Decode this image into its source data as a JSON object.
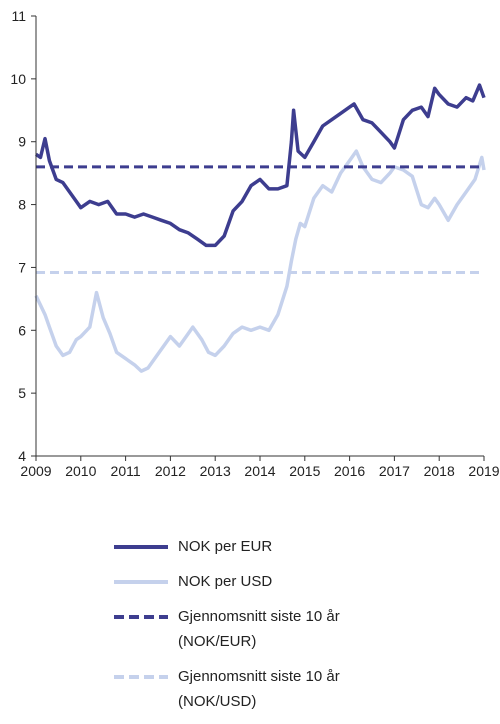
{
  "chart_data": {
    "type": "line",
    "title": "",
    "xlabel": "",
    "ylabel": "",
    "xlim": [
      2009,
      2019
    ],
    "ylim": [
      4,
      11
    ],
    "x_ticks": [
      "2009",
      "2010",
      "2011",
      "2012",
      "2013",
      "2014",
      "2015",
      "2016",
      "2017",
      "2018",
      "2019"
    ],
    "y_ticks": [
      "4",
      "5",
      "6",
      "7",
      "8",
      "9",
      "10",
      "11"
    ],
    "grid": false,
    "legend_position": "bottom",
    "series": [
      {
        "name": "NOK per EUR",
        "style": "solid",
        "color": "#3d3d8f",
        "x": [
          2009.0,
          2009.1,
          2009.2,
          2009.3,
          2009.45,
          2009.6,
          2009.75,
          2009.9,
          2010.0,
          2010.2,
          2010.4,
          2010.6,
          2010.8,
          2011.0,
          2011.2,
          2011.4,
          2011.6,
          2011.8,
          2012.0,
          2012.2,
          2012.4,
          2012.6,
          2012.8,
          2013.0,
          2013.2,
          2013.4,
          2013.6,
          2013.8,
          2014.0,
          2014.2,
          2014.4,
          2014.6,
          2014.7,
          2014.75,
          2014.85,
          2015.0,
          2015.2,
          2015.4,
          2015.6,
          2015.8,
          2016.0,
          2016.1,
          2016.3,
          2016.5,
          2016.7,
          2016.9,
          2017.0,
          2017.2,
          2017.4,
          2017.6,
          2017.75,
          2017.9,
          2018.0,
          2018.2,
          2018.4,
          2018.6,
          2018.75,
          2018.9,
          2019.0
        ],
        "values": [
          8.8,
          8.75,
          9.05,
          8.7,
          8.4,
          8.35,
          8.2,
          8.05,
          7.95,
          8.05,
          8.0,
          8.05,
          7.85,
          7.85,
          7.8,
          7.85,
          7.8,
          7.75,
          7.7,
          7.6,
          7.55,
          7.45,
          7.35,
          7.35,
          7.5,
          7.9,
          8.05,
          8.3,
          8.4,
          8.25,
          8.25,
          8.3,
          9.0,
          9.5,
          8.85,
          8.75,
          9.0,
          9.25,
          9.35,
          9.45,
          9.55,
          9.6,
          9.35,
          9.3,
          9.15,
          9.0,
          8.9,
          9.35,
          9.5,
          9.55,
          9.4,
          9.85,
          9.75,
          9.6,
          9.55,
          9.7,
          9.65,
          9.9,
          9.7
        ]
      },
      {
        "name": "NOK per USD",
        "style": "solid",
        "color": "#c5d1ec",
        "x": [
          2009.0,
          2009.1,
          2009.2,
          2009.3,
          2009.45,
          2009.6,
          2009.75,
          2009.9,
          2010.0,
          2010.2,
          2010.35,
          2010.5,
          2010.65,
          2010.8,
          2011.0,
          2011.2,
          2011.35,
          2011.5,
          2011.7,
          2011.85,
          2012.0,
          2012.2,
          2012.35,
          2012.5,
          2012.7,
          2012.85,
          2013.0,
          2013.2,
          2013.4,
          2013.6,
          2013.8,
          2014.0,
          2014.2,
          2014.4,
          2014.6,
          2014.7,
          2014.8,
          2014.9,
          2015.0,
          2015.2,
          2015.4,
          2015.6,
          2015.8,
          2016.0,
          2016.15,
          2016.3,
          2016.5,
          2016.7,
          2016.9,
          2017.0,
          2017.2,
          2017.4,
          2017.6,
          2017.75,
          2017.9,
          2018.0,
          2018.2,
          2018.4,
          2018.6,
          2018.8,
          2018.95,
          2019.0
        ],
        "values": [
          6.55,
          6.4,
          6.25,
          6.05,
          5.75,
          5.6,
          5.65,
          5.85,
          5.9,
          6.05,
          6.6,
          6.2,
          5.95,
          5.65,
          5.55,
          5.45,
          5.35,
          5.4,
          5.6,
          5.75,
          5.9,
          5.75,
          5.9,
          6.05,
          5.85,
          5.65,
          5.6,
          5.75,
          5.95,
          6.05,
          6.0,
          6.05,
          6.0,
          6.25,
          6.7,
          7.1,
          7.45,
          7.7,
          7.65,
          8.1,
          8.3,
          8.2,
          8.5,
          8.7,
          8.85,
          8.6,
          8.4,
          8.35,
          8.5,
          8.6,
          8.55,
          8.45,
          8.0,
          7.95,
          8.1,
          8.0,
          7.75,
          8.0,
          8.2,
          8.4,
          8.75,
          8.55
        ]
      },
      {
        "name": "Gjennomsnitt siste 10 år (NOK/EUR)",
        "style": "dashed",
        "color": "#3d3d8f",
        "x": [
          2009.0,
          2019.0
        ],
        "values": [
          8.6,
          8.6
        ]
      },
      {
        "name": "Gjennomsnitt siste 10 år (NOK/USD)",
        "style": "dashed",
        "color": "#c5d1ec",
        "x": [
          2009.0,
          2019.0
        ],
        "values": [
          6.92,
          6.92
        ]
      }
    ]
  },
  "legend": {
    "items": [
      {
        "label_lines": [
          "NOK per EUR"
        ],
        "style": "solid",
        "color": "#3d3d8f"
      },
      {
        "label_lines": [
          "NOK per USD"
        ],
        "style": "solid",
        "color": "#c5d1ec"
      },
      {
        "label_lines": [
          "Gjennomsnitt siste 10 år",
          "(NOK/EUR)"
        ],
        "style": "dashed",
        "color": "#3d3d8f"
      },
      {
        "label_lines": [
          "Gjennomsnitt siste 10 år",
          "(NOK/USD)"
        ],
        "style": "dashed",
        "color": "#c5d1ec"
      }
    ]
  }
}
